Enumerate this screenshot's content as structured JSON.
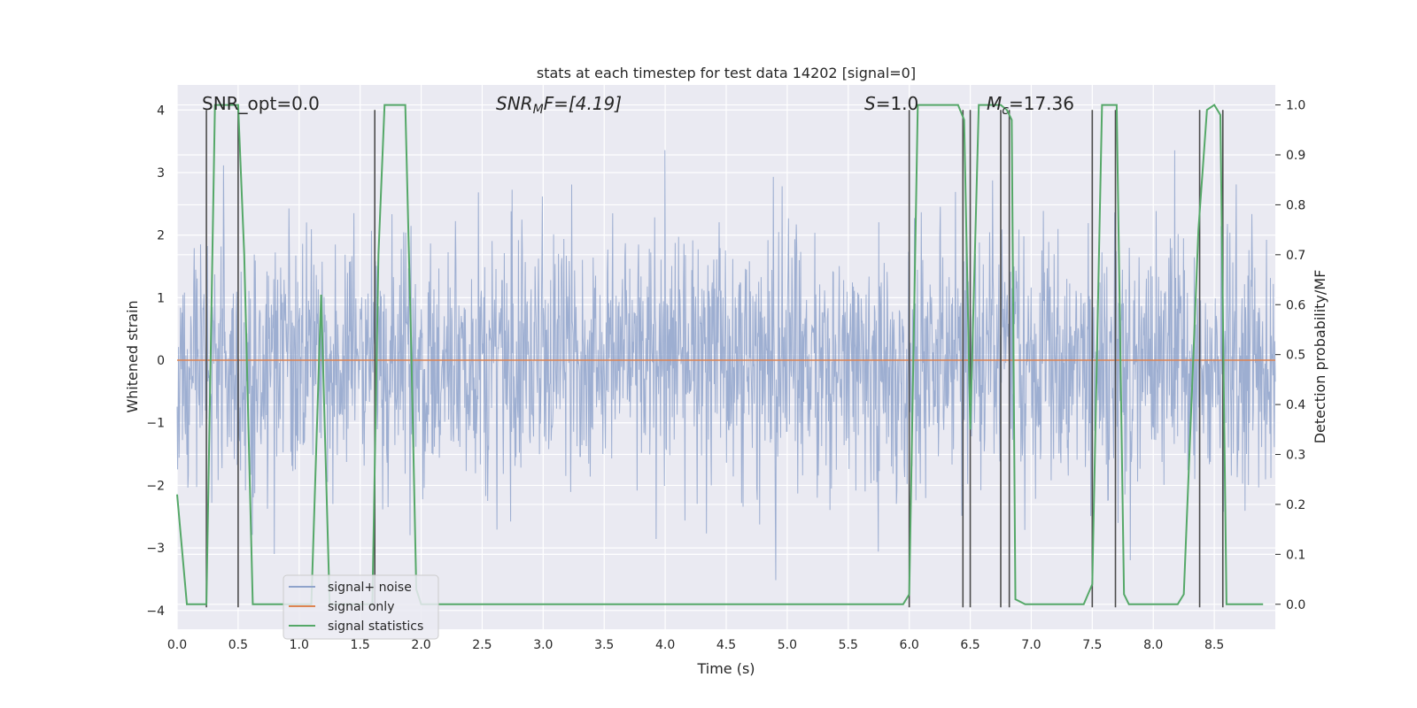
{
  "chart_data": {
    "type": "line",
    "title": "stats at each timestep for test data 14202 [signal=0]",
    "xlabel": "Time (s)",
    "ylabel": "Whitened strain",
    "y2label": "Detection probability/MF",
    "xlim": [
      0.0,
      9.0
    ],
    "ylim": [
      -4.3,
      4.4
    ],
    "y2lim": [
      -0.05,
      1.04
    ],
    "x_ticks": [
      "0.0",
      "0.5",
      "1.0",
      "1.5",
      "2.0",
      "2.5",
      "3.0",
      "3.5",
      "4.0",
      "4.5",
      "5.0",
      "5.5",
      "6.0",
      "6.5",
      "7.0",
      "7.5",
      "8.0",
      "8.5"
    ],
    "x_tick_values": [
      0.0,
      0.5,
      1.0,
      1.5,
      2.0,
      2.5,
      3.0,
      3.5,
      4.0,
      4.5,
      5.0,
      5.5,
      6.0,
      6.5,
      7.0,
      7.5,
      8.0,
      8.5
    ],
    "y_ticks": [
      "4",
      "3",
      "2",
      "1",
      "0",
      "−1",
      "−2",
      "−3",
      "−4"
    ],
    "y_tick_values": [
      4,
      3,
      2,
      1,
      0,
      -1,
      -2,
      -3,
      -4
    ],
    "y2_ticks": [
      "1.0",
      "0.9",
      "0.8",
      "0.7",
      "0.6",
      "0.5",
      "0.4",
      "0.3",
      "0.2",
      "0.1",
      "0.0"
    ],
    "y2_tick_values": [
      1.0,
      0.9,
      0.8,
      0.7,
      0.6,
      0.5,
      0.4,
      0.3,
      0.2,
      0.1,
      0.0
    ],
    "annotations": {
      "snr_opt": "SNR_opt=0.0",
      "snr_mf_main": "SNR",
      "snr_mf_sub": "M",
      "snr_mf_rest": "F=[4.19]",
      "s_var": "S",
      "s_rest": "=1.0",
      "mc_var": "M",
      "mc_sub": "c",
      "mc_rest": "=17.36"
    },
    "legend": {
      "position": "lower-left",
      "entries": [
        "signal+ noise",
        "signal only",
        "signal statistics"
      ]
    },
    "noise": {
      "name": "signal+ noise",
      "color": "#8fa3cb",
      "n_samples": 2250,
      "amplitude_std": 1.0,
      "seed": 14202
    },
    "signal_only": {
      "name": "signal only",
      "color": "#dd8452",
      "value": 0.0
    },
    "statistics": {
      "name": "signal statistics",
      "color": "#55a868",
      "x": [
        0.0,
        0.08,
        0.24,
        0.31,
        0.5,
        0.55,
        0.62,
        1.0,
        1.1,
        1.18,
        1.25,
        1.5,
        1.6,
        1.65,
        1.7,
        1.87,
        1.92,
        1.96,
        2.0,
        5.95,
        6.0,
        6.07,
        6.4,
        6.45,
        6.5,
        6.57,
        6.75,
        6.8,
        6.84,
        6.87,
        6.95,
        7.43,
        7.5,
        7.58,
        7.7,
        7.76,
        7.8,
        8.2,
        8.25,
        8.37,
        8.44,
        8.5,
        8.55,
        8.6,
        8.65,
        8.9
      ],
      "y": [
        0.22,
        0.0,
        0.0,
        1.0,
        1.0,
        0.7,
        0.0,
        0.0,
        0.0,
        0.62,
        0.0,
        0.0,
        0.0,
        0.7,
        1.0,
        1.0,
        0.5,
        0.03,
        0.0,
        0.0,
        0.02,
        1.0,
        1.0,
        0.97,
        0.35,
        1.0,
        1.0,
        0.99,
        0.97,
        0.01,
        0.0,
        0.0,
        0.04,
        1.0,
        1.0,
        0.02,
        0.0,
        0.0,
        0.02,
        0.75,
        0.99,
        1.0,
        0.98,
        0.0,
        0.0,
        0.0
      ]
    },
    "markers": {
      "color": "#4c4c4c",
      "x": [
        0.24,
        0.5,
        1.62,
        6.0,
        6.44,
        6.5,
        6.75,
        6.82,
        7.5,
        7.69,
        8.38,
        8.57
      ],
      "y_from": -3.95,
      "y_to": 4.0
    },
    "colors": {
      "plot_background": "#eaeaf2",
      "grid": "#ffffff",
      "text": "#262626"
    }
  }
}
